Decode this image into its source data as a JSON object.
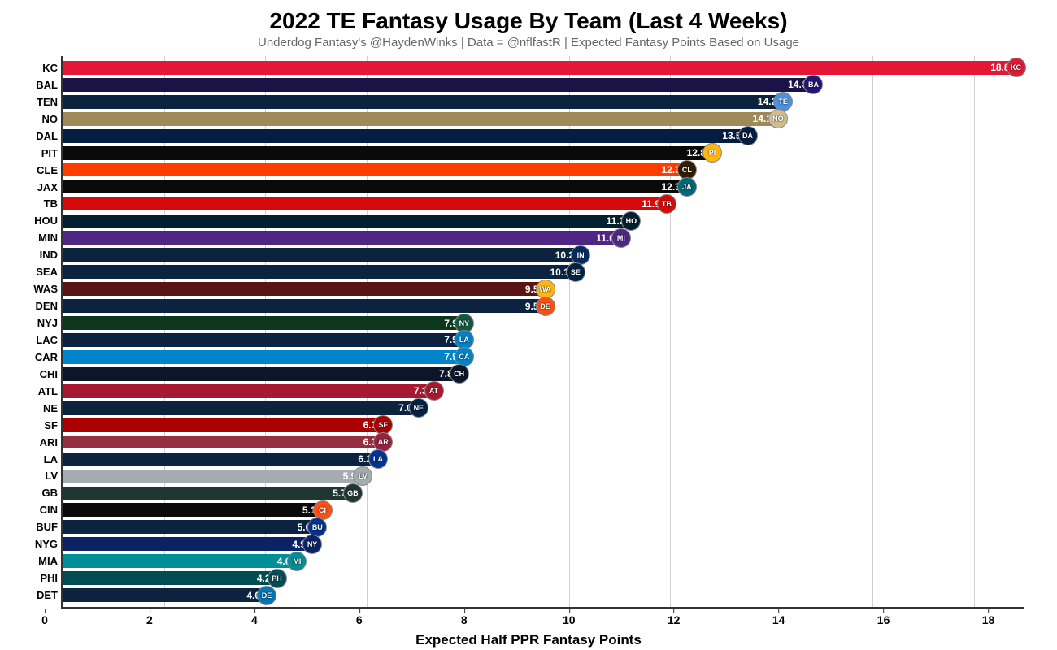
{
  "chart": {
    "type": "bar-horizontal",
    "title": "2022 TE Fantasy Usage By Team (Last 4 Weeks)",
    "title_fontsize": 28,
    "subtitle": "Underdog Fantasy's @HaydenWinks | Data = @nflfastR | Expected Fantasy Points Based on Usage",
    "subtitle_fontsize": 15,
    "xlabel": "Expected Half PPR Fantasy Points",
    "xlabel_fontsize": 17,
    "xlim": [
      0,
      19
    ],
    "xtick_step": 2,
    "xticks": [
      0,
      2,
      4,
      6,
      8,
      10,
      12,
      14,
      16,
      18
    ],
    "background_color": "#ffffff",
    "grid_color": "#d0d0d0",
    "axis_color": "#333333",
    "value_label_color": "#ffffff",
    "value_label_fontsize": 12,
    "ylabel_fontsize": 13,
    "teams": [
      {
        "abbr": "KC",
        "value": 18.8,
        "bar_color": "#e31837",
        "logo_bg": "#e31837"
      },
      {
        "abbr": "BAL",
        "value": 14.8,
        "bar_color": "#1a1446",
        "logo_bg": "#241773"
      },
      {
        "abbr": "TEN",
        "value": 14.2,
        "bar_color": "#0c2340",
        "logo_bg": "#4b92db"
      },
      {
        "abbr": "NO",
        "value": 14.1,
        "bar_color": "#9f8958",
        "logo_bg": "#d3bc8d"
      },
      {
        "abbr": "DAL",
        "value": 13.5,
        "bar_color": "#041e42",
        "logo_bg": "#041e42"
      },
      {
        "abbr": "PIT",
        "value": 12.8,
        "bar_color": "#0a0a0a",
        "logo_bg": "#ffb612"
      },
      {
        "abbr": "CLE",
        "value": 12.3,
        "bar_color": "#ff3c00",
        "logo_bg": "#311d00"
      },
      {
        "abbr": "JAX",
        "value": 12.3,
        "bar_color": "#0a0a0a",
        "logo_bg": "#006778"
      },
      {
        "abbr": "TB",
        "value": 11.9,
        "bar_color": "#d50a0a",
        "logo_bg": "#d50a0a"
      },
      {
        "abbr": "HOU",
        "value": 11.2,
        "bar_color": "#03202f",
        "logo_bg": "#03202f"
      },
      {
        "abbr": "MIN",
        "value": 11.0,
        "bar_color": "#4f2683",
        "logo_bg": "#4f2683"
      },
      {
        "abbr": "IND",
        "value": 10.2,
        "bar_color": "#0c2340",
        "logo_bg": "#002c5f"
      },
      {
        "abbr": "SEA",
        "value": 10.1,
        "bar_color": "#0c2340",
        "logo_bg": "#002244"
      },
      {
        "abbr": "WAS",
        "value": 9.5,
        "bar_color": "#5a1414",
        "logo_bg": "#ffb612"
      },
      {
        "abbr": "DEN",
        "value": 9.5,
        "bar_color": "#0c2340",
        "logo_bg": "#fb4f14"
      },
      {
        "abbr": "NYJ",
        "value": 7.9,
        "bar_color": "#0c371d",
        "logo_bg": "#125740"
      },
      {
        "abbr": "LAC",
        "value": 7.9,
        "bar_color": "#0c2340",
        "logo_bg": "#0080c6"
      },
      {
        "abbr": "CAR",
        "value": 7.9,
        "bar_color": "#0085ca",
        "logo_bg": "#0085ca"
      },
      {
        "abbr": "CHI",
        "value": 7.8,
        "bar_color": "#0b162a",
        "logo_bg": "#0b162a"
      },
      {
        "abbr": "ATL",
        "value": 7.3,
        "bar_color": "#a71930",
        "logo_bg": "#a71930"
      },
      {
        "abbr": "NE",
        "value": 7.0,
        "bar_color": "#0c2340",
        "logo_bg": "#002244"
      },
      {
        "abbr": "SF",
        "value": 6.3,
        "bar_color": "#aa0000",
        "logo_bg": "#aa0000"
      },
      {
        "abbr": "ARI",
        "value": 6.3,
        "bar_color": "#972e3f",
        "logo_bg": "#97233f"
      },
      {
        "abbr": "LA",
        "value": 6.2,
        "bar_color": "#0c2340",
        "logo_bg": "#003594"
      },
      {
        "abbr": "LV",
        "value": 5.9,
        "bar_color": "#a5acaf",
        "logo_bg": "#a5acaf"
      },
      {
        "abbr": "GB",
        "value": 5.7,
        "bar_color": "#203731",
        "logo_bg": "#203731"
      },
      {
        "abbr": "CIN",
        "value": 5.1,
        "bar_color": "#0a0a0a",
        "logo_bg": "#fb4f14"
      },
      {
        "abbr": "BUF",
        "value": 5.0,
        "bar_color": "#0c2340",
        "logo_bg": "#00338d"
      },
      {
        "abbr": "NYG",
        "value": 4.9,
        "bar_color": "#0b2265",
        "logo_bg": "#0b2265"
      },
      {
        "abbr": "MIA",
        "value": 4.6,
        "bar_color": "#008e97",
        "logo_bg": "#008e97"
      },
      {
        "abbr": "PHI",
        "value": 4.2,
        "bar_color": "#004c54",
        "logo_bg": "#004c54"
      },
      {
        "abbr": "DET",
        "value": 4.0,
        "bar_color": "#0c2340",
        "logo_bg": "#0076b6"
      }
    ]
  }
}
